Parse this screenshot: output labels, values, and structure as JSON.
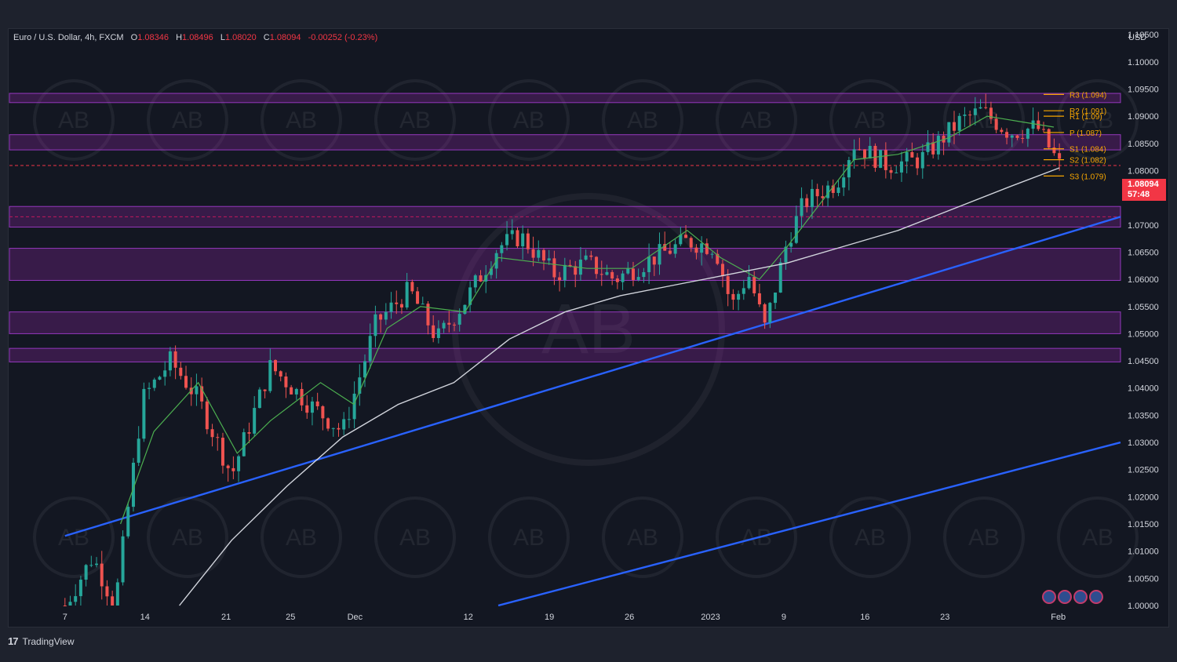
{
  "legend": {
    "symbol": "Euro / U.S. Dollar, 4h, FXCM",
    "o_label": "O",
    "o_value": "1.08346",
    "h_label": "H",
    "h_value": "1.08496",
    "l_label": "L",
    "l_value": "1.08020",
    "c_label": "C",
    "c_value": "1.08094",
    "change": "-0.00252 (-0.23%)"
  },
  "currency": "USD",
  "last_price": {
    "price": "1.08094",
    "countdown": "57:48"
  },
  "footer": {
    "brand": "TradingView",
    "logo_glyph": "17"
  },
  "watermark": "AB",
  "colors": {
    "background": "#131722",
    "up": "#26a69a",
    "down": "#ef5350",
    "zone": "#9c27b0",
    "trend": "#2962ff",
    "pivot": "#f7a600",
    "ma_fast": "#4caf50",
    "ma_slow": "#d1d4dc",
    "last_price": "#f23645"
  },
  "chart_data": {
    "type": "candlestick",
    "yaxis_ticks": [
      "1.10500",
      "1.10000",
      "1.09500",
      "1.09000",
      "1.08500",
      "1.08000",
      "1.07500",
      "1.07000",
      "1.06500",
      "1.06000",
      "1.05500",
      "1.05000",
      "1.04500",
      "1.04000",
      "1.03500",
      "1.03000",
      "1.02500",
      "1.02000",
      "1.01500",
      "1.01000",
      "1.00500",
      "1.00000"
    ],
    "ylim": [
      1.0,
      1.1056
    ],
    "xaxis_ticks": [
      {
        "label": "7",
        "t": 0.05
      },
      {
        "label": "14",
        "t": 0.122
      },
      {
        "label": "21",
        "t": 0.195
      },
      {
        "label": "25",
        "t": 0.253
      },
      {
        "label": "Dec",
        "t": 0.311
      },
      {
        "label": "12",
        "t": 0.413
      },
      {
        "label": "19",
        "t": 0.486
      },
      {
        "label": "26",
        "t": 0.558
      },
      {
        "label": "2023",
        "t": 0.631
      },
      {
        "label": "9",
        "t": 0.697
      },
      {
        "label": "16",
        "t": 0.77
      },
      {
        "label": "23",
        "t": 0.842
      },
      {
        "label": "Feb",
        "t": 0.944
      }
    ],
    "price_path": [
      [
        0.05,
        1.0
      ],
      [
        0.075,
        1.009
      ],
      [
        0.095,
        1.0
      ],
      [
        0.12,
        1.038
      ],
      [
        0.145,
        1.045
      ],
      [
        0.17,
        1.038
      ],
      [
        0.2,
        1.024
      ],
      [
        0.235,
        1.044
      ],
      [
        0.27,
        1.037
      ],
      [
        0.3,
        1.032
      ],
      [
        0.33,
        1.052
      ],
      [
        0.36,
        1.058
      ],
      [
        0.385,
        1.049
      ],
      [
        0.41,
        1.056
      ],
      [
        0.44,
        1.066
      ],
      [
        0.46,
        1.068
      ],
      [
        0.49,
        1.061
      ],
      [
        0.52,
        1.063
      ],
      [
        0.545,
        1.06
      ],
      [
        0.58,
        1.064
      ],
      [
        0.61,
        1.067
      ],
      [
        0.635,
        1.066
      ],
      [
        0.65,
        1.055
      ],
      [
        0.665,
        1.061
      ],
      [
        0.68,
        1.051
      ],
      [
        0.7,
        1.067
      ],
      [
        0.715,
        1.074
      ],
      [
        0.745,
        1.078
      ],
      [
        0.76,
        1.085
      ],
      [
        0.79,
        1.081
      ],
      [
        0.82,
        1.082
      ],
      [
        0.84,
        1.086
      ],
      [
        0.855,
        1.089
      ],
      [
        0.875,
        1.091
      ],
      [
        0.9,
        1.087
      ],
      [
        0.925,
        1.088
      ],
      [
        0.945,
        1.081
      ]
    ],
    "ma_fast_path": [
      [
        0.1,
        1.015
      ],
      [
        0.13,
        1.032
      ],
      [
        0.17,
        1.041
      ],
      [
        0.205,
        1.028
      ],
      [
        0.235,
        1.034
      ],
      [
        0.28,
        1.041
      ],
      [
        0.31,
        1.037
      ],
      [
        0.34,
        1.051
      ],
      [
        0.37,
        1.055
      ],
      [
        0.41,
        1.054
      ],
      [
        0.44,
        1.064
      ],
      [
        0.48,
        1.063
      ],
      [
        0.52,
        1.062
      ],
      [
        0.56,
        1.062
      ],
      [
        0.61,
        1.069
      ],
      [
        0.64,
        1.064
      ],
      [
        0.675,
        1.06
      ],
      [
        0.7,
        1.066
      ],
      [
        0.73,
        1.074
      ],
      [
        0.76,
        1.082
      ],
      [
        0.8,
        1.083
      ],
      [
        0.845,
        1.086
      ],
      [
        0.88,
        1.09
      ],
      [
        0.91,
        1.089
      ],
      [
        0.94,
        1.088
      ]
    ],
    "ma_slow_path": [
      [
        0.153,
        1.0
      ],
      [
        0.2,
        1.012
      ],
      [
        0.25,
        1.022
      ],
      [
        0.3,
        1.031
      ],
      [
        0.35,
        1.037
      ],
      [
        0.4,
        1.041
      ],
      [
        0.45,
        1.049
      ],
      [
        0.5,
        1.054
      ],
      [
        0.55,
        1.057
      ],
      [
        0.6,
        1.059
      ],
      [
        0.65,
        1.061
      ],
      [
        0.7,
        1.063
      ],
      [
        0.75,
        1.066
      ],
      [
        0.8,
        1.069
      ],
      [
        0.85,
        1.073
      ],
      [
        0.9,
        1.077
      ],
      [
        0.945,
        1.0805
      ]
    ],
    "zones": [
      [
        1.0925,
        1.0942
      ],
      [
        1.0838,
        1.0866
      ],
      [
        1.0696,
        1.0734
      ],
      [
        1.0598,
        1.0657
      ],
      [
        1.05,
        1.054
      ],
      [
        1.0448,
        1.0473
      ]
    ],
    "dashed_levels": [
      1.0715,
      1.08094
    ],
    "trendlines": [
      {
        "from": [
          0.05,
          1.0128
        ],
        "to": [
          1.0,
          1.0715
        ]
      },
      {
        "from": [
          0.44,
          1.0
        ],
        "to": [
          1.0,
          1.03
        ]
      }
    ],
    "pivots": [
      {
        "label": "R3 (1.094)",
        "value": 1.094
      },
      {
        "label": "R2 (1.091)",
        "value": 1.091
      },
      {
        "label": "R1 (1.09)",
        "value": 1.09
      },
      {
        "label": "P (1.087)",
        "value": 1.087
      },
      {
        "label": "S1 (1.084)",
        "value": 1.084
      },
      {
        "label": "S2 (1.082)",
        "value": 1.082
      },
      {
        "label": "S3 (1.079)",
        "value": 1.079
      }
    ]
  }
}
